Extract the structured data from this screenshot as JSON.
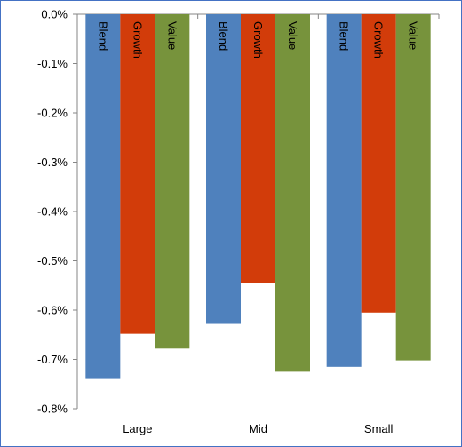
{
  "chart_data": {
    "type": "bar",
    "title": "",
    "xlabel": "",
    "ylabel": "",
    "categories": [
      "Large",
      "Mid",
      "Small"
    ],
    "series": [
      {
        "name": "Blend",
        "color": "#4f81bd",
        "values": [
          -0.738,
          -0.628,
          -0.715
        ]
      },
      {
        "name": "Growth",
        "color": "#d23c0a",
        "values": [
          -0.648,
          -0.545,
          -0.605
        ]
      },
      {
        "name": "Value",
        "color": "#77933c",
        "values": [
          -0.678,
          -0.725,
          -0.702
        ]
      }
    ],
    "ylim": [
      -0.8,
      0.0
    ],
    "yticks": [
      {
        "value": 0.0,
        "label": "0.0%"
      },
      {
        "value": -0.1,
        "label": "-0.1%"
      },
      {
        "value": -0.2,
        "label": "-0.2%"
      },
      {
        "value": -0.3,
        "label": "-0.3%"
      },
      {
        "value": -0.4,
        "label": "-0.4%"
      },
      {
        "value": -0.5,
        "label": "-0.5%"
      },
      {
        "value": -0.6,
        "label": "-0.6%"
      },
      {
        "value": -0.7,
        "label": "-0.7%"
      },
      {
        "value": -0.8,
        "label": "-0.8%"
      }
    ],
    "bar_labels_inside": true,
    "grid": false,
    "legend": "none"
  }
}
